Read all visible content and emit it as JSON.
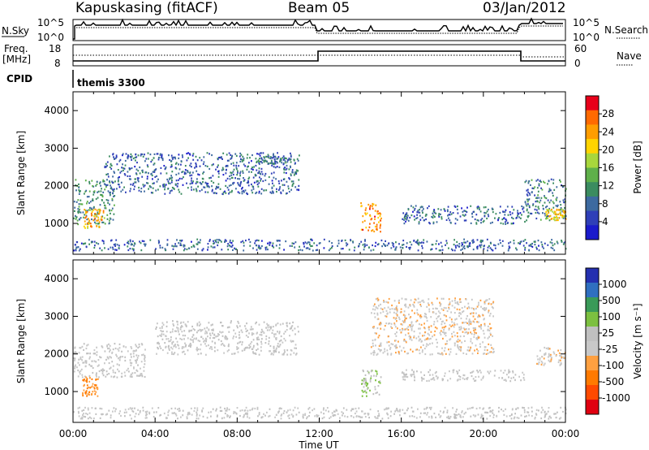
{
  "header": {
    "station": "Kapuskasing (fitACF)",
    "beam": "Beam 05",
    "date": "03/Jan/2012"
  },
  "top_panels": {
    "nsky": {
      "label": "N.Sky",
      "ticks": [
        "10^5",
        "10^0"
      ],
      "right_label": "N.Search",
      "right_ticks": [
        "10^5",
        "10^0"
      ]
    },
    "freq": {
      "label_line1": "Freq.",
      "label_line2": "[MHz]",
      "ticks": [
        "18",
        "8"
      ],
      "right_label": "Nave",
      "right_ticks": [
        "60",
        "0"
      ]
    },
    "cpid": {
      "label": "CPID",
      "value": "themis 3300"
    }
  },
  "colorbars": {
    "power": {
      "label": "Power [dB]",
      "ticks": [
        "28",
        "24",
        "20",
        "16",
        "12",
        "8",
        "4"
      ],
      "colors": [
        "#e8001a",
        "#ff6a00",
        "#ff9d00",
        "#ffd400",
        "#a8d73c",
        "#5fb04a",
        "#3b8c60",
        "#3d6aa0",
        "#2f3fb8",
        "#1a1acc"
      ]
    },
    "velocity": {
      "label": "Velocity [m s⁻¹]",
      "ticks": [
        "1000",
        "500",
        "100",
        "25",
        "-25",
        "-100",
        "-500",
        "-1000"
      ],
      "colors": [
        "#2430b0",
        "#2f6fc0",
        "#3a9a58",
        "#7cc040",
        "#c0c0c0",
        "#c8c8c8",
        "#ffa040",
        "#ff7a00",
        "#ff4a00",
        "#e00010"
      ]
    }
  },
  "chart_data": [
    {
      "type": "heatmap",
      "title": "",
      "xlabel": "Time UT",
      "ylabel": "Slant Range [km]",
      "x_ticks": [
        "00:00",
        "04:00",
        "08:00",
        "12:00",
        "16:00",
        "20:00",
        "00:00"
      ],
      "x_range_hours": [
        0,
        24
      ],
      "y_ticks": [
        1000,
        2000,
        3000,
        4000
      ],
      "ylim": [
        180,
        4500
      ],
      "colorbar_label": "Power [dB]",
      "z_range": [
        0,
        30
      ],
      "features": [
        {
          "t_start": 0.0,
          "t_end": 24.0,
          "range_start": 300,
          "range_end": 600,
          "level": 6
        },
        {
          "t_start": 0.0,
          "t_end": 2.0,
          "range_start": 1000,
          "range_end": 2200,
          "level": 10
        },
        {
          "t_start": 0.5,
          "t_end": 1.5,
          "range_start": 900,
          "range_end": 1400,
          "level": 22
        },
        {
          "t_start": 1.5,
          "t_end": 11.0,
          "range_start": 1800,
          "range_end": 2900,
          "level": 6
        },
        {
          "t_start": 9.0,
          "t_end": 10.5,
          "range_start": 2600,
          "range_end": 2800,
          "level": 8
        },
        {
          "t_start": 14.0,
          "t_end": 15.0,
          "range_start": 800,
          "range_end": 1600,
          "level": 24
        },
        {
          "t_start": 16.0,
          "t_end": 22.0,
          "range_start": 1000,
          "range_end": 1500,
          "level": 6
        },
        {
          "t_start": 22.0,
          "t_end": 24.0,
          "range_start": 1100,
          "range_end": 2200,
          "level": 8
        },
        {
          "t_start": 23.0,
          "t_end": 24.0,
          "range_start": 1100,
          "range_end": 1400,
          "level": 20
        }
      ]
    },
    {
      "type": "heatmap",
      "title": "",
      "xlabel": "Time UT",
      "ylabel": "Slant Range [km]",
      "x_ticks": [
        "00:00",
        "04:00",
        "08:00",
        "12:00",
        "16:00",
        "20:00",
        "00:00"
      ],
      "x_range_hours": [
        0,
        24
      ],
      "y_ticks": [
        1000,
        2000,
        3000,
        4000
      ],
      "ylim": [
        180,
        4500
      ],
      "colorbar_label": "Velocity [m s⁻¹]",
      "z_range": [
        -1000,
        1000
      ],
      "features": [
        {
          "t_start": 0.0,
          "t_end": 24.0,
          "range_start": 300,
          "range_end": 600,
          "level": 0
        },
        {
          "t_start": 0.0,
          "t_end": 3.5,
          "range_start": 1400,
          "range_end": 2300,
          "level": 0
        },
        {
          "t_start": 0.4,
          "t_end": 1.2,
          "range_start": 900,
          "range_end": 1400,
          "level": -400
        },
        {
          "t_start": 4.0,
          "t_end": 11.0,
          "range_start": 2000,
          "range_end": 2900,
          "level": 0
        },
        {
          "t_start": 14.0,
          "t_end": 15.0,
          "range_start": 900,
          "range_end": 1600,
          "level": 200
        },
        {
          "t_start": 14.5,
          "t_end": 20.5,
          "range_start": 2000,
          "range_end": 3500,
          "level": -150
        },
        {
          "t_start": 16.0,
          "t_end": 22.0,
          "range_start": 1300,
          "range_end": 1600,
          "level": 0
        },
        {
          "t_start": 22.5,
          "t_end": 24.0,
          "range_start": 1700,
          "range_end": 2200,
          "level": -150
        }
      ]
    }
  ]
}
